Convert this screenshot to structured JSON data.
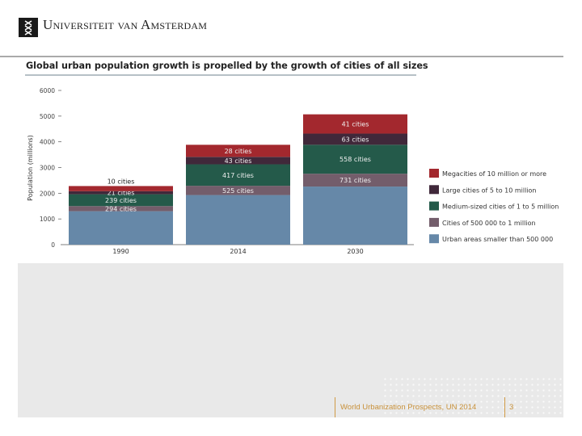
{
  "header": {
    "institution": "Universiteit van Amsterdam",
    "logo_icon": "uva-crest-icon"
  },
  "footer": {
    "source": "World Urbanization Prospects, UN 2014",
    "page_number": "3",
    "accent_color": "#c8913a"
  },
  "chart_data": {
    "type": "bar",
    "stacked": true,
    "title": "Global urban population growth is propelled by the growth of cities of all sizes",
    "xlabel": "",
    "ylabel": "Population (millions)",
    "ylim": [
      0,
      6000
    ],
    "yticks": [
      "0",
      "1000",
      "2000",
      "3000",
      "4000",
      "5000",
      "6000"
    ],
    "categories": [
      "1990",
      "2014",
      "2030"
    ],
    "legend_position": "right",
    "grid": false,
    "series": [
      {
        "name": "Urban areas smaller than 500 000",
        "color": "#6688a8",
        "values": [
          1300,
          1930,
          2260
        ],
        "labels": [
          "",
          "",
          ""
        ]
      },
      {
        "name": "Cities of 500 000 to 1 million",
        "color": "#735d6b",
        "values": [
          200,
          360,
          500
        ],
        "labels": [
          "294 cities",
          "525 cities",
          "731 cities"
        ]
      },
      {
        "name": "Medium-sized cities of 1 to 5 million",
        "color": "#245a4a",
        "values": [
          460,
          835,
          1125
        ],
        "labels": [
          "239 cities",
          "417 cities",
          "558 cities"
        ]
      },
      {
        "name": "Large cities of 5 to 10 million",
        "color": "#40283a",
        "values": [
          120,
          290,
          435
        ],
        "labels": [
          "21 cities",
          "43 cities",
          "63 cities"
        ]
      },
      {
        "name": "Megacities of 10 million or more",
        "color": "#a3282e",
        "values": [
          200,
          470,
          750
        ],
        "labels": [
          "10 cities",
          "28 cities",
          "41 cities"
        ]
      }
    ]
  }
}
